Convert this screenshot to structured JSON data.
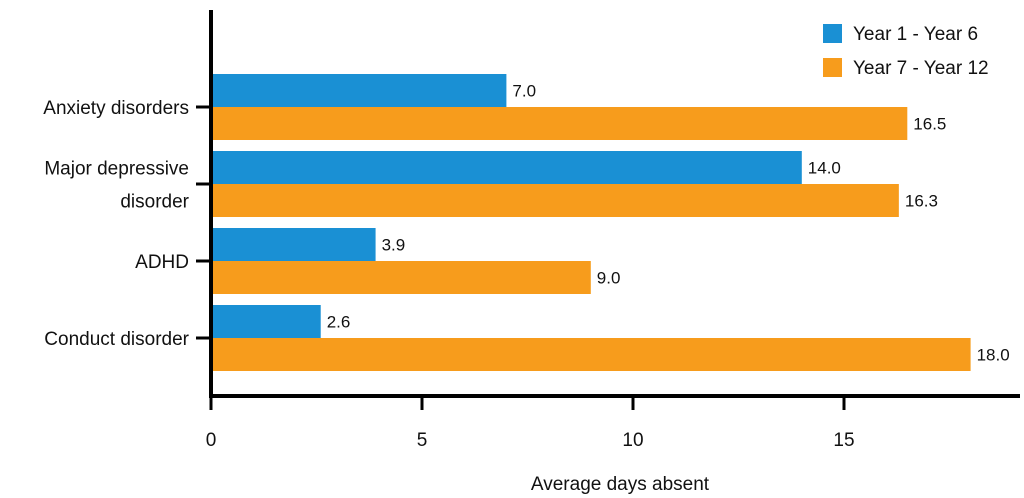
{
  "chart_data": {
    "type": "bar",
    "orientation": "horizontal",
    "title": "",
    "xlabel": "Average days absent",
    "ylabel": "",
    "xlim": [
      0,
      19
    ],
    "xticks": [
      0,
      5,
      10,
      15
    ],
    "grid": false,
    "legend_position": "top-right",
    "categories": [
      {
        "lines": [
          "Anxiety disorders"
        ]
      },
      {
        "lines": [
          "Major depressive",
          "disorder"
        ]
      },
      {
        "lines": [
          "ADHD"
        ]
      },
      {
        "lines": [
          "Conduct disorder"
        ]
      }
    ],
    "series": [
      {
        "name": "Year 1 - Year 6",
        "color": "#1a90d4",
        "values": [
          7.0,
          14.0,
          3.9,
          2.6
        ],
        "labels": [
          "7.0",
          "14.0",
          "3.9",
          "2.6"
        ]
      },
      {
        "name": "Year 7 - Year 12",
        "color": "#f79c1c",
        "values": [
          16.5,
          16.3,
          9.0,
          18.0
        ],
        "labels": [
          "16.5",
          "16.3",
          "9.0",
          "18.0"
        ]
      }
    ]
  }
}
